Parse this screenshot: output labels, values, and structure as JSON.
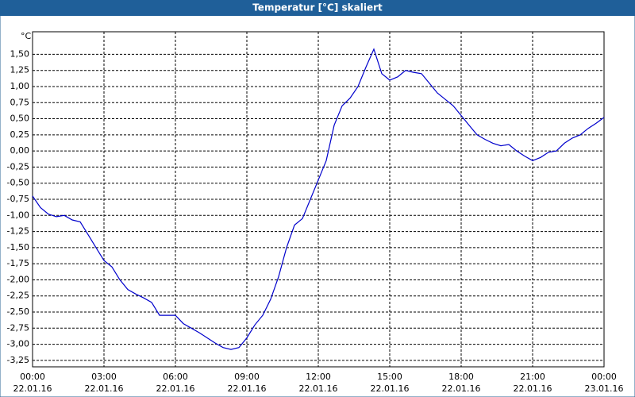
{
  "chart_data": {
    "type": "line",
    "title": "Temperatur [°C] skaliert",
    "y_unit": "°C",
    "x": [
      "22.01.16 00:00",
      "22.01.16 00:20",
      "22.01.16 00:40",
      "22.01.16 01:00",
      "22.01.16 01:20",
      "22.01.16 01:40",
      "22.01.16 02:00",
      "22.01.16 02:20",
      "22.01.16 02:40",
      "22.01.16 03:00",
      "22.01.16 03:20",
      "22.01.16 03:40",
      "22.01.16 04:00",
      "22.01.16 04:20",
      "22.01.16 04:40",
      "22.01.16 05:00",
      "22.01.16 05:20",
      "22.01.16 05:40",
      "22.01.16 06:00",
      "22.01.16 06:20",
      "22.01.16 06:40",
      "22.01.16 07:00",
      "22.01.16 07:20",
      "22.01.16 07:40",
      "22.01.16 08:00",
      "22.01.16 08:20",
      "22.01.16 08:40",
      "22.01.16 09:00",
      "22.01.16 09:20",
      "22.01.16 09:40",
      "22.01.16 10:00",
      "22.01.16 10:20",
      "22.01.16 10:40",
      "22.01.16 11:00",
      "22.01.16 11:20",
      "22.01.16 11:40",
      "22.01.16 12:00",
      "22.01.16 12:20",
      "22.01.16 12:40",
      "22.01.16 13:00",
      "22.01.16 13:20",
      "22.01.16 13:40",
      "22.01.16 14:00",
      "22.01.16 14:20",
      "22.01.16 14:40",
      "22.01.16 15:00",
      "22.01.16 15:20",
      "22.01.16 15:40",
      "22.01.16 16:00",
      "22.01.16 16:20",
      "22.01.16 16:40",
      "22.01.16 17:00",
      "22.01.16 17:20",
      "22.01.16 17:40",
      "22.01.16 18:00",
      "22.01.16 18:20",
      "22.01.16 18:40",
      "22.01.16 19:00",
      "22.01.16 19:20",
      "22.01.16 19:40",
      "22.01.16 20:00",
      "22.01.16 20:20",
      "22.01.16 20:40",
      "22.01.16 21:00",
      "22.01.16 21:20",
      "22.01.16 21:40",
      "22.01.16 22:00",
      "22.01.16 22:20",
      "22.01.16 22:40",
      "22.01.16 23:00",
      "22.01.16 23:20",
      "22.01.16 23:40",
      "23.01.16 00:00"
    ],
    "series": [
      {
        "color": "#0000cc",
        "values": [
          -0.7,
          -0.88,
          -0.98,
          -1.02,
          -1.0,
          -1.07,
          -1.1,
          -1.3,
          -1.5,
          -1.7,
          -1.8,
          -2.0,
          -2.15,
          -2.22,
          -2.28,
          -2.35,
          -2.55,
          -2.55,
          -2.55,
          -2.68,
          -2.75,
          -2.82,
          -2.9,
          -2.98,
          -3.05,
          -3.08,
          -3.05,
          -2.9,
          -2.7,
          -2.55,
          -2.3,
          -1.95,
          -1.5,
          -1.15,
          -1.05,
          -0.75,
          -0.45,
          -0.15,
          0.4,
          0.7,
          0.82,
          1.0,
          1.3,
          1.58,
          1.2,
          1.1,
          1.15,
          1.25,
          1.22,
          1.2,
          1.05,
          0.9,
          0.8,
          0.7,
          0.55,
          0.4,
          0.25,
          0.18,
          0.12,
          0.08,
          0.1,
          0.0,
          -0.08,
          -0.15,
          -0.1,
          -0.02,
          0.0,
          0.12,
          0.2,
          0.25,
          0.35,
          0.43,
          0.52
        ]
      }
    ],
    "xlim": [
      "22.01.16 00:00",
      "23.01.16 00:00"
    ],
    "xticks": [
      {
        "value": "22.01.16 00:00",
        "label": {
          "time": "00:00",
          "date": "22.01.16"
        }
      },
      {
        "value": "22.01.16 03:00",
        "label": {
          "time": "03:00",
          "date": "22.01.16"
        }
      },
      {
        "value": "22.01.16 06:00",
        "label": {
          "time": "06:00",
          "date": "22.01.16"
        }
      },
      {
        "value": "22.01.16 09:00",
        "label": {
          "time": "09:00",
          "date": "22.01.16"
        }
      },
      {
        "value": "22.01.16 12:00",
        "label": {
          "time": "12:00",
          "date": "22.01.16"
        }
      },
      {
        "value": "22.01.16 15:00",
        "label": {
          "time": "15:00",
          "date": "22.01.16"
        }
      },
      {
        "value": "22.01.16 18:00",
        "label": {
          "time": "18:00",
          "date": "22.01.16"
        }
      },
      {
        "value": "22.01.16 21:00",
        "label": {
          "time": "21:00",
          "date": "22.01.16"
        }
      },
      {
        "value": "23.01.16 00:00",
        "label": {
          "time": "00:00",
          "date": "23.01.16"
        }
      }
    ],
    "ylim": [
      -3.35,
      1.85
    ],
    "yticks": [
      {
        "value": 1.5,
        "label": "1,50"
      },
      {
        "value": 1.25,
        "label": "1,25"
      },
      {
        "value": 1,
        "label": "1,00"
      },
      {
        "value": 0.75,
        "label": "0,75"
      },
      {
        "value": 0.5,
        "label": "0,50"
      },
      {
        "value": 0.25,
        "label": "0,25"
      },
      {
        "value": 0,
        "label": "0,00"
      },
      {
        "value": -0.25,
        "label": "-0,25"
      },
      {
        "value": -0.5,
        "label": "-0,50"
      },
      {
        "value": -0.75,
        "label": "-0,75"
      },
      {
        "value": -1,
        "label": "-1,00"
      },
      {
        "value": -1.25,
        "label": "-1,25"
      },
      {
        "value": -1.5,
        "label": "-1,50"
      },
      {
        "value": -1.75,
        "label": "-1,75"
      },
      {
        "value": -2,
        "label": "-2,00"
      },
      {
        "value": -2.25,
        "label": "-2,25"
      },
      {
        "value": -2.5,
        "label": "-2,50"
      },
      {
        "value": -2.75,
        "label": "-2,75"
      },
      {
        "value": -3,
        "label": "-3,00"
      },
      {
        "value": -3.25,
        "label": "-3,25"
      }
    ],
    "grid": true
  }
}
